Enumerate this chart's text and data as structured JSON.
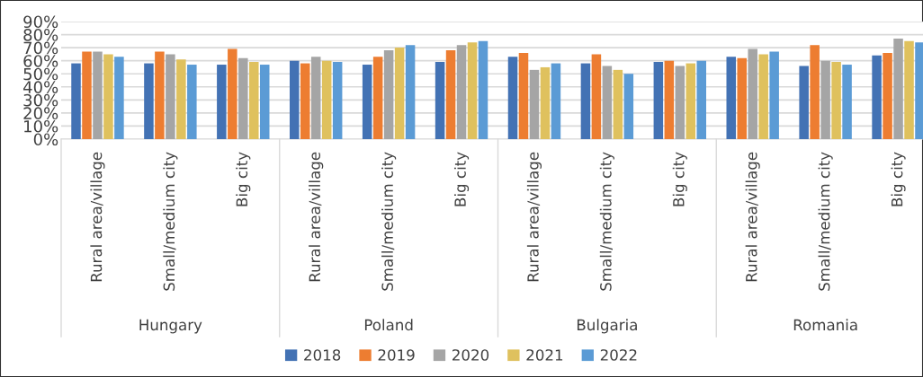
{
  "chart_data": {
    "type": "bar",
    "categories": [
      "Rural area/village",
      "Small/medium city",
      "Big city",
      "Rural area/village",
      "Small/medium city",
      "Big city",
      "Rural area/village",
      "Small/medium city",
      "Big city",
      "Rural area/village",
      "Small/medium city",
      "Big city"
    ],
    "annotations": [
      "Hungary",
      "Poland",
      "Bulgaria",
      "Romania"
    ],
    "series": [
      {
        "name": "2018",
        "color": "#4372b4",
        "values": [
          58,
          58,
          57,
          60,
          57,
          59,
          63,
          58,
          59,
          63,
          56,
          64
        ]
      },
      {
        "name": "2019",
        "color": "#ed7d31",
        "values": [
          67,
          67,
          69,
          58,
          63,
          68,
          66,
          65,
          60,
          62,
          72,
          66
        ]
      },
      {
        "name": "2020",
        "color": "#a5a5a5",
        "values": [
          67,
          65,
          62,
          63,
          68,
          72,
          53,
          56,
          56,
          69,
          60,
          77
        ]
      },
      {
        "name": "2021",
        "color": "#dfc15e",
        "values": [
          65,
          61,
          59,
          60,
          70,
          74,
          55,
          53,
          58,
          65,
          59,
          75
        ]
      },
      {
        "name": "2022",
        "color": "#5b9bd5",
        "values": [
          63,
          57,
          57,
          59,
          72,
          75,
          58,
          50,
          60,
          67,
          57,
          74
        ]
      }
    ],
    "ylim": [
      0,
      90
    ],
    "yticks": [
      {
        "value": 0,
        "label": "0%"
      },
      {
        "value": 10,
        "label": "10%"
      },
      {
        "value": 20,
        "label": "20%"
      },
      {
        "value": 30,
        "label": "30%"
      },
      {
        "value": 40,
        "label": "40%"
      },
      {
        "value": 50,
        "label": "50%"
      },
      {
        "value": 60,
        "label": "60%"
      },
      {
        "value": 70,
        "label": "70%"
      },
      {
        "value": 80,
        "label": "80%"
      },
      {
        "value": 90,
        "label": "90%"
      }
    ],
    "grid": "y",
    "legend": "bottom"
  }
}
